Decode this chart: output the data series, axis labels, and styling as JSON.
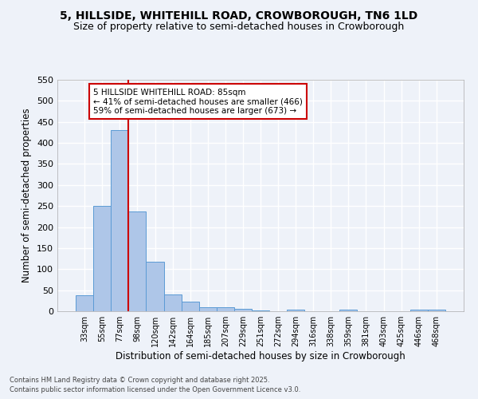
{
  "title1": "5, HILLSIDE, WHITEHILL ROAD, CROWBOROUGH, TN6 1LD",
  "title2": "Size of property relative to semi-detached houses in Crowborough",
  "xlabel": "Distribution of semi-detached houses by size in Crowborough",
  "ylabel": "Number of semi-detached properties",
  "categories": [
    "33sqm",
    "55sqm",
    "77sqm",
    "98sqm",
    "120sqm",
    "142sqm",
    "164sqm",
    "185sqm",
    "207sqm",
    "229sqm",
    "251sqm",
    "272sqm",
    "294sqm",
    "316sqm",
    "338sqm",
    "359sqm",
    "381sqm",
    "403sqm",
    "425sqm",
    "446sqm",
    "468sqm"
  ],
  "values": [
    38,
    251,
    430,
    237,
    118,
    40,
    23,
    10,
    9,
    5,
    2,
    0,
    4,
    0,
    0,
    4,
    0,
    0,
    0,
    4,
    4
  ],
  "bar_color": "#aec6e8",
  "bar_edge_color": "#5b9bd5",
  "red_line_index": 2,
  "annotation_title": "5 HILLSIDE WHITEHILL ROAD: 85sqm",
  "annotation_line1": "← 41% of semi-detached houses are smaller (466)",
  "annotation_line2": "59% of semi-detached houses are larger (673) →",
  "annotation_box_color": "#ffffff",
  "annotation_box_edge_color": "#cc0000",
  "ylim": [
    0,
    550
  ],
  "yticks": [
    0,
    50,
    100,
    150,
    200,
    250,
    300,
    350,
    400,
    450,
    500,
    550
  ],
  "footnote1": "Contains HM Land Registry data © Crown copyright and database right 2025.",
  "footnote2": "Contains public sector information licensed under the Open Government Licence v3.0.",
  "bg_color": "#eef2f9",
  "grid_color": "#ffffff",
  "title1_fontsize": 10,
  "title2_fontsize": 9,
  "xlabel_fontsize": 8.5,
  "ylabel_fontsize": 8.5,
  "xtick_fontsize": 7,
  "ytick_fontsize": 8,
  "footnote_fontsize": 6,
  "annot_fontsize": 7.5
}
